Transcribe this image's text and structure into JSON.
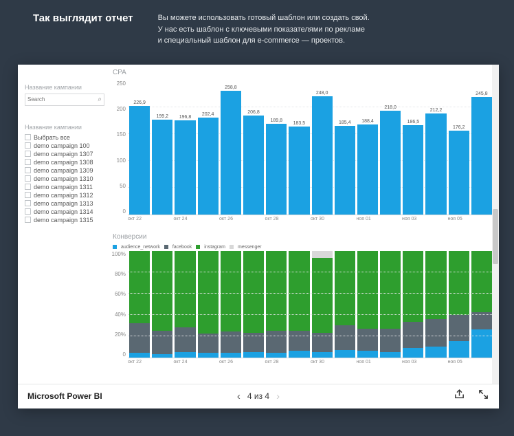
{
  "header": {
    "title": "Так выглядит отчет",
    "desc_line1": "Вы можете использовать готовый шаблон или создать свой.",
    "desc_line2": "У нас есть шаблон с ключевыми показателями по рекламе",
    "desc_line3": "и специальный шаблон для e-commerce — проектов."
  },
  "sidebar": {
    "filter1_label": "Название кампании",
    "search_placeholder": "Search",
    "filter2_label": "Название кампании",
    "select_all": "Выбрать все",
    "campaigns": [
      "demo campaign 100",
      "demo campaign 1307",
      "demo campaign 1308",
      "demo campaign 1309",
      "demo campaign 1310",
      "demo campaign 1311",
      "demo campaign 1312",
      "demo campaign 1313",
      "demo campaign 1314",
      "demo campaign 1315"
    ]
  },
  "cpa_chart": {
    "title": "CPA",
    "type": "bar",
    "bar_color": "#1ba1e2",
    "grid_color": "#e4e6e8",
    "background_color": "#ffffff",
    "ylim": [
      0,
      250
    ],
    "ytick_step": 50,
    "yticks": [
      "250",
      "200",
      "150",
      "100",
      "50",
      "0"
    ],
    "values": [
      226.9,
      199.2,
      196.8,
      202.4,
      258.8,
      206.8,
      189.8,
      183.5,
      248.0,
      185.4,
      188.4,
      218.0,
      186.5,
      212.2,
      176.2,
      245.8
    ],
    "value_labels": [
      "226,9",
      "199,2",
      "196,8",
      "202,4",
      "258,8",
      "206,8",
      "189,8",
      "183,5",
      "248,0",
      "185,4",
      "188,4",
      "218,0",
      "186,5",
      "212,2",
      "176,2",
      "245,8"
    ],
    "x_labels": [
      "окт 22",
      "окт 24",
      "окт 26",
      "окт 28",
      "окт 30",
      "ноя 01",
      "ноя 03",
      "ноя 05"
    ]
  },
  "conv_chart": {
    "title": "Конверсии",
    "type": "stacked-bar-100",
    "legend": [
      {
        "name": "audience_network",
        "color": "#1ba1e2"
      },
      {
        "name": "facebook",
        "color": "#5a6872"
      },
      {
        "name": "instagram",
        "color": "#2e9e2e"
      },
      {
        "name": "messenger",
        "color": "#d8d8d8"
      }
    ],
    "yticks": [
      "100%",
      "80%",
      "60%",
      "40%",
      "20%",
      "0"
    ],
    "x_labels": [
      "окт 22",
      "окт 24",
      "окт 26",
      "окт 28",
      "окт 30",
      "ноя 01",
      "ноя 03",
      "ноя 05"
    ],
    "stacks": [
      {
        "audience_network": 4,
        "facebook": 28,
        "instagram": 68,
        "messenger": 0
      },
      {
        "audience_network": 3,
        "facebook": 22,
        "instagram": 75,
        "messenger": 0
      },
      {
        "audience_network": 5,
        "facebook": 23,
        "instagram": 72,
        "messenger": 0
      },
      {
        "audience_network": 4,
        "facebook": 18,
        "instagram": 78,
        "messenger": 0
      },
      {
        "audience_network": 4,
        "facebook": 20,
        "instagram": 76,
        "messenger": 0
      },
      {
        "audience_network": 5,
        "facebook": 18,
        "instagram": 77,
        "messenger": 0
      },
      {
        "audience_network": 4,
        "facebook": 21,
        "instagram": 75,
        "messenger": 0
      },
      {
        "audience_network": 6,
        "facebook": 19,
        "instagram": 75,
        "messenger": 0
      },
      {
        "audience_network": 5,
        "facebook": 18,
        "instagram": 70,
        "messenger": 7
      },
      {
        "audience_network": 7,
        "facebook": 23,
        "instagram": 70,
        "messenger": 0
      },
      {
        "audience_network": 6,
        "facebook": 21,
        "instagram": 73,
        "messenger": 0
      },
      {
        "audience_network": 5,
        "facebook": 22,
        "instagram": 73,
        "messenger": 0
      },
      {
        "audience_network": 9,
        "facebook": 24,
        "instagram": 67,
        "messenger": 0
      },
      {
        "audience_network": 10,
        "facebook": 26,
        "instagram": 64,
        "messenger": 0
      },
      {
        "audience_network": 15,
        "facebook": 25,
        "instagram": 60,
        "messenger": 0
      },
      {
        "audience_network": 26,
        "facebook": 16,
        "instagram": 58,
        "messenger": 0
      }
    ]
  },
  "footer": {
    "app": "Microsoft Power BI",
    "pager": "4 из 4"
  }
}
